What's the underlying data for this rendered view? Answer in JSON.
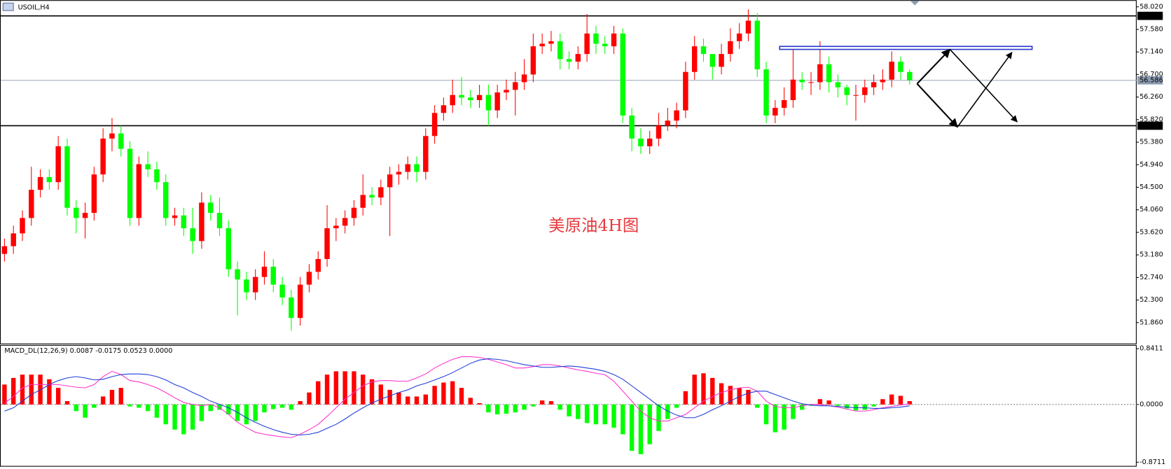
{
  "chart_data": [
    {
      "type": "candlestick",
      "title": "USOIL,H4",
      "annotation": "美原油4H图",
      "up_color": "#ff0000",
      "down_color": "#00ff00",
      "ylim": [
        51.452,
        58.151
      ],
      "yticks": [
        {
          "value": 58.02,
          "label": "58.020"
        },
        {
          "value": 57.58,
          "label": "57.580"
        },
        {
          "value": 57.14,
          "label": "57.140"
        },
        {
          "value": 56.7,
          "label": "56.700"
        },
        {
          "value": 56.26,
          "label": "56.260"
        },
        {
          "value": 55.82,
          "label": "55.820"
        },
        {
          "value": 55.38,
          "label": "55.380"
        },
        {
          "value": 54.94,
          "label": "54.940"
        },
        {
          "value": 54.5,
          "label": "54.500"
        },
        {
          "value": 54.06,
          "label": "54.060"
        },
        {
          "value": 53.62,
          "label": "53.620"
        },
        {
          "value": 53.18,
          "label": "53.180"
        },
        {
          "value": 52.74,
          "label": "52.740"
        },
        {
          "value": 52.3,
          "label": "52.300"
        },
        {
          "value": 51.86,
          "label": "51.860"
        }
      ],
      "price_lines": [
        {
          "value": 57.844,
          "label": "57.844",
          "color": "#000000"
        },
        {
          "value": 56.586,
          "label": "56.586",
          "color": "#8a9bb0"
        },
        {
          "value": 55.701,
          "label": "55.701",
          "color": "#000000"
        }
      ],
      "ohlc": [
        [
          53.2,
          53.5,
          53.05,
          53.35
        ],
        [
          53.35,
          53.75,
          53.2,
          53.6
        ],
        [
          53.6,
          54.05,
          53.45,
          53.9
        ],
        [
          53.9,
          54.9,
          53.75,
          54.45
        ],
        [
          54.45,
          54.85,
          54.3,
          54.7
        ],
        [
          54.7,
          54.85,
          54.45,
          54.6
        ],
        [
          54.6,
          55.5,
          54.45,
          55.3
        ],
        [
          55.3,
          55.45,
          53.95,
          54.1
        ],
        [
          54.1,
          54.25,
          53.6,
          53.9
        ],
        [
          53.9,
          54.2,
          53.5,
          54.0
        ],
        [
          54.0,
          54.9,
          53.85,
          54.75
        ],
        [
          54.75,
          55.65,
          54.6,
          55.45
        ],
        [
          55.45,
          55.85,
          55.2,
          55.55
        ],
        [
          55.55,
          55.7,
          55.1,
          55.25
        ],
        [
          55.25,
          55.4,
          53.75,
          53.9
        ],
        [
          53.9,
          55.1,
          53.75,
          54.95
        ],
        [
          54.95,
          55.2,
          54.7,
          54.85
        ],
        [
          54.85,
          55.0,
          54.45,
          54.6
        ],
        [
          54.6,
          54.75,
          53.75,
          53.9
        ],
        [
          53.9,
          54.1,
          53.75,
          53.95
        ],
        [
          53.95,
          54.1,
          53.55,
          53.7
        ],
        [
          53.7,
          54.1,
          53.2,
          53.45
        ],
        [
          53.45,
          54.4,
          53.3,
          54.2
        ],
        [
          54.2,
          54.35,
          53.85,
          54.0
        ],
        [
          54.0,
          54.3,
          53.55,
          53.7
        ],
        [
          53.7,
          53.85,
          52.75,
          52.9
        ],
        [
          52.9,
          53.05,
          52.0,
          52.7
        ],
        [
          52.7,
          52.85,
          52.3,
          52.45
        ],
        [
          52.45,
          52.9,
          52.3,
          52.75
        ],
        [
          52.75,
          53.25,
          52.6,
          52.95
        ],
        [
          52.95,
          53.1,
          52.45,
          52.6
        ],
        [
          52.6,
          52.75,
          52.2,
          52.35
        ],
        [
          52.35,
          52.5,
          51.7,
          51.95
        ],
        [
          51.95,
          52.75,
          51.8,
          52.6
        ],
        [
          52.6,
          53.0,
          52.45,
          52.85
        ],
        [
          52.85,
          53.25,
          52.7,
          53.1
        ],
        [
          53.1,
          54.15,
          52.95,
          53.7
        ],
        [
          53.7,
          53.9,
          53.45,
          53.75
        ],
        [
          53.75,
          54.05,
          53.6,
          53.9
        ],
        [
          53.9,
          54.25,
          53.75,
          54.1
        ],
        [
          54.1,
          54.75,
          53.95,
          54.35
        ],
        [
          54.35,
          54.5,
          54.15,
          54.3
        ],
        [
          54.3,
          54.65,
          54.15,
          54.5
        ],
        [
          54.5,
          54.9,
          53.55,
          54.75
        ],
        [
          54.75,
          54.95,
          54.55,
          54.8
        ],
        [
          54.8,
          55.1,
          54.65,
          54.95
        ],
        [
          54.95,
          55.1,
          54.6,
          54.8
        ],
        [
          54.8,
          55.65,
          54.65,
          55.5
        ],
        [
          55.5,
          56.1,
          55.35,
          55.95
        ],
        [
          55.95,
          56.25,
          55.8,
          56.1
        ],
        [
          56.1,
          56.6,
          55.95,
          56.3
        ],
        [
          56.3,
          56.65,
          56.1,
          56.25
        ],
        [
          56.25,
          56.4,
          56.05,
          56.2
        ],
        [
          56.2,
          56.5,
          56.05,
          56.3
        ],
        [
          56.3,
          56.5,
          55.7,
          56.0
        ],
        [
          56.0,
          56.5,
          55.85,
          56.35
        ],
        [
          56.35,
          56.6,
          56.2,
          56.4
        ],
        [
          56.4,
          56.75,
          55.9,
          56.55
        ],
        [
          56.55,
          57.0,
          56.4,
          56.7
        ],
        [
          56.7,
          57.5,
          56.55,
          57.25
        ],
        [
          57.25,
          57.5,
          57.1,
          57.3
        ],
        [
          57.3,
          57.55,
          57.15,
          57.35
        ],
        [
          57.35,
          57.5,
          56.8,
          57.0
        ],
        [
          57.0,
          57.15,
          56.8,
          56.95
        ],
        [
          56.95,
          57.25,
          56.8,
          57.1
        ],
        [
          57.1,
          57.88,
          56.95,
          57.5
        ],
        [
          57.5,
          57.65,
          57.1,
          57.3
        ],
        [
          57.3,
          57.45,
          57.1,
          57.25
        ],
        [
          57.25,
          57.65,
          57.1,
          57.5
        ],
        [
          57.5,
          57.6,
          55.75,
          55.9
        ],
        [
          55.9,
          56.05,
          55.2,
          55.45
        ],
        [
          55.45,
          55.65,
          55.15,
          55.3
        ],
        [
          55.3,
          55.6,
          55.15,
          55.45
        ],
        [
          55.45,
          55.95,
          55.3,
          55.7
        ],
        [
          55.7,
          56.05,
          55.6,
          55.8
        ],
        [
          55.8,
          56.15,
          55.65,
          56.0
        ],
        [
          56.0,
          56.95,
          55.85,
          56.75
        ],
        [
          56.75,
          57.45,
          56.6,
          57.25
        ],
        [
          57.25,
          57.4,
          56.95,
          57.1
        ],
        [
          57.1,
          57.05,
          56.6,
          56.85
        ],
        [
          56.85,
          57.3,
          56.7,
          57.1
        ],
        [
          57.1,
          57.6,
          56.95,
          57.35
        ],
        [
          57.35,
          57.7,
          57.2,
          57.5
        ],
        [
          57.5,
          57.97,
          57.35,
          57.75
        ],
        [
          57.75,
          57.9,
          56.65,
          56.8
        ],
        [
          56.8,
          56.95,
          55.75,
          55.9
        ],
        [
          55.9,
          56.2,
          55.75,
          56.05
        ],
        [
          56.05,
          56.45,
          55.9,
          56.2
        ],
        [
          56.2,
          57.2,
          56.05,
          56.6
        ],
        [
          56.6,
          56.75,
          56.4,
          56.55
        ],
        [
          56.55,
          56.75,
          56.3,
          56.55
        ],
        [
          56.55,
          57.35,
          56.4,
          56.9
        ],
        [
          56.9,
          57.05,
          56.35,
          56.55
        ],
        [
          56.55,
          56.7,
          56.25,
          56.45
        ],
        [
          56.45,
          56.5,
          56.1,
          56.3
        ],
        [
          56.3,
          56.5,
          55.8,
          56.3
        ],
        [
          56.3,
          56.6,
          56.15,
          56.45
        ],
        [
          56.45,
          56.7,
          56.3,
          56.55
        ],
        [
          56.55,
          56.8,
          56.4,
          56.6
        ],
        [
          56.6,
          57.15,
          56.45,
          56.95
        ],
        [
          56.95,
          57.05,
          56.6,
          56.75
        ],
        [
          56.75,
          56.8,
          56.5,
          56.59
        ]
      ]
    },
    {
      "type": "macd",
      "title": "MACD_DL(12,26,9) 0.0087 -0.0175 0.0523 0.0000",
      "ylim": [
        -0.938,
        0.897
      ],
      "yticks": [
        {
          "value": 0.8411,
          "label": "0.8411"
        },
        {
          "value": 0,
          "label": "0.0000"
        },
        {
          "value": -0.8711,
          "label": "-0.8711"
        }
      ],
      "pos_color": "#ff0000",
      "neg_color": "#00ff00",
      "values": [
        0.3,
        0.4,
        0.45,
        0.45,
        0.45,
        0.38,
        0.25,
        0.05,
        -0.1,
        -0.2,
        -0.05,
        0.12,
        0.22,
        0.25,
        -0.03,
        -0.05,
        -0.1,
        -0.2,
        -0.3,
        -0.38,
        -0.45,
        -0.38,
        -0.25,
        -0.1,
        -0.08,
        -0.15,
        -0.25,
        -0.3,
        -0.25,
        -0.12,
        -0.07,
        -0.05,
        -0.08,
        0.05,
        0.18,
        0.35,
        0.45,
        0.5,
        0.5,
        0.5,
        0.45,
        0.38,
        0.3,
        0.22,
        0.18,
        0.12,
        0.12,
        0.15,
        0.28,
        0.33,
        0.35,
        0.25,
        0.1,
        0.02,
        -0.12,
        -0.15,
        -0.14,
        -0.12,
        -0.08,
        -0.03,
        0.06,
        0.05,
        -0.08,
        -0.18,
        -0.22,
        -0.28,
        -0.3,
        -0.3,
        -0.35,
        -0.45,
        -0.7,
        -0.75,
        -0.6,
        -0.4,
        -0.22,
        -0.05,
        0.2,
        0.45,
        0.47,
        0.4,
        0.32,
        0.28,
        0.25,
        0.22,
        -0.05,
        -0.3,
        -0.42,
        -0.38,
        -0.22,
        -0.08,
        -0.02,
        0.08,
        0.06,
        -0.02,
        -0.06,
        -0.09,
        -0.08,
        -0.03,
        0.08,
        0.15,
        0.13,
        0.05
      ],
      "lines": [
        {
          "color": "#ff33cc",
          "values": [
            0.02,
            0.12,
            0.25,
            0.3,
            0.3,
            0.3,
            0.3,
            0.28,
            0.26,
            0.25,
            0.3,
            0.42,
            0.5,
            0.45,
            0.36,
            0.34,
            0.3,
            0.25,
            0.18,
            0.1,
            0.03,
            0.0,
            -0.02,
            0.0,
            -0.05,
            -0.15,
            -0.27,
            -0.35,
            -0.42,
            -0.45,
            -0.47,
            -0.49,
            -0.5,
            -0.45,
            -0.38,
            -0.3,
            -0.18,
            -0.05,
            0.08,
            0.18,
            0.28,
            0.34,
            0.36,
            0.36,
            0.35,
            0.35,
            0.4,
            0.46,
            0.55,
            0.62,
            0.68,
            0.72,
            0.72,
            0.71,
            0.68,
            0.64,
            0.6,
            0.55,
            0.55,
            0.57,
            0.6,
            0.6,
            0.58,
            0.55,
            0.52,
            0.5,
            0.47,
            0.45,
            0.35,
            0.2,
            0.05,
            -0.1,
            -0.2,
            -0.25,
            -0.25,
            -0.2,
            -0.15,
            -0.05,
            0.05,
            0.12,
            0.18,
            0.22,
            0.25,
            0.26,
            0.2,
            0.05,
            -0.03,
            -0.05,
            -0.05,
            -0.02,
            0.0,
            0.0,
            -0.02,
            -0.04,
            -0.07,
            -0.1,
            -0.1,
            -0.08,
            -0.05,
            -0.03,
            -0.01,
            0.01
          ]
        },
        {
          "color": "#1f3fd6",
          "values": [
            -0.1,
            -0.05,
            0.05,
            0.15,
            0.22,
            0.3,
            0.36,
            0.4,
            0.42,
            0.4,
            0.37,
            0.38,
            0.42,
            0.45,
            0.46,
            0.46,
            0.45,
            0.42,
            0.37,
            0.3,
            0.25,
            0.18,
            0.12,
            0.05,
            0.0,
            -0.05,
            -0.12,
            -0.2,
            -0.27,
            -0.33,
            -0.38,
            -0.42,
            -0.45,
            -0.46,
            -0.45,
            -0.42,
            -0.36,
            -0.3,
            -0.22,
            -0.13,
            -0.05,
            0.02,
            0.08,
            0.13,
            0.18,
            0.22,
            0.28,
            0.32,
            0.37,
            0.42,
            0.48,
            0.55,
            0.62,
            0.67,
            0.69,
            0.68,
            0.66,
            0.63,
            0.6,
            0.58,
            0.56,
            0.56,
            0.57,
            0.58,
            0.57,
            0.55,
            0.53,
            0.5,
            0.45,
            0.38,
            0.28,
            0.18,
            0.08,
            -0.02,
            -0.1,
            -0.16,
            -0.2,
            -0.2,
            -0.15,
            -0.08,
            -0.02,
            0.05,
            0.12,
            0.17,
            0.2,
            0.2,
            0.15,
            0.1,
            0.05,
            0.01,
            -0.01,
            -0.02,
            -0.02,
            -0.03,
            -0.04,
            -0.05,
            -0.05,
            -0.06,
            -0.06,
            -0.05,
            -0.04,
            -0.02
          ]
        }
      ]
    }
  ]
}
